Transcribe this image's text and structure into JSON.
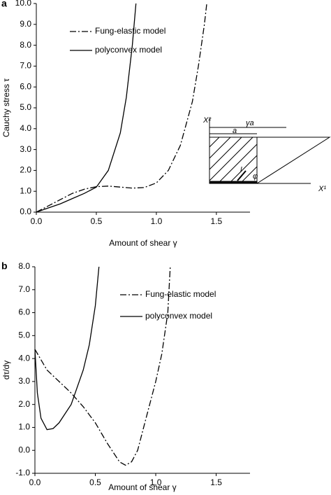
{
  "chart_data": [
    {
      "type": "line",
      "panel_label": "a",
      "xlabel": "Amount of shear γ",
      "ylabel": "Cauchy stress  τ",
      "xlim": [
        0,
        1.78
      ],
      "ylim": [
        0,
        10
      ],
      "xticks": [
        {
          "value": 0,
          "label": "0.0"
        },
        {
          "value": 0.5,
          "label": "0.5"
        },
        {
          "value": 1,
          "label": "1.0"
        },
        {
          "value": 1.5,
          "label": "1.5"
        }
      ],
      "yticks": [
        {
          "value": 0,
          "label": "0.0"
        },
        {
          "value": 1,
          "label": "1.0"
        },
        {
          "value": 2,
          "label": "2.0"
        },
        {
          "value": 3,
          "label": "3.0"
        },
        {
          "value": 4,
          "label": "4.0"
        },
        {
          "value": 5,
          "label": "5.0"
        },
        {
          "value": 6,
          "label": "6.0"
        },
        {
          "value": 7,
          "label": "7.0"
        },
        {
          "value": 8,
          "label": "8.0"
        },
        {
          "value": 9,
          "label": "9.0"
        },
        {
          "value": 10,
          "label": "10.0"
        }
      ],
      "series": [
        {
          "name": "Fung-elastic model",
          "color": "#000000",
          "style": "dashdot",
          "x": [
            0,
            0.1,
            0.2,
            0.3,
            0.4,
            0.5,
            0.6,
            0.7,
            0.8,
            0.9,
            1.0,
            1.1,
            1.2,
            1.3,
            1.35,
            1.4,
            1.42
          ],
          "values": [
            0,
            0.3,
            0.6,
            0.9,
            1.1,
            1.22,
            1.25,
            1.2,
            1.15,
            1.18,
            1.4,
            2.0,
            3.2,
            5.3,
            7.0,
            9.0,
            10
          ]
        },
        {
          "name": "polyconvex model",
          "color": "#000000",
          "style": "solid",
          "x": [
            0,
            0.1,
            0.2,
            0.3,
            0.4,
            0.5,
            0.6,
            0.7,
            0.75,
            0.8,
            0.83
          ],
          "values": [
            0,
            0.2,
            0.4,
            0.65,
            0.9,
            1.2,
            2.0,
            3.8,
            5.5,
            8.0,
            10
          ]
        }
      ],
      "annotations": [
        "X²",
        "γa",
        "a",
        "X¹",
        "l",
        "φ"
      ]
    },
    {
      "type": "line",
      "panel_label": "b",
      "xlabel": "Amount of shear γ",
      "ylabel": "dτ/dγ",
      "xlim": [
        0,
        1.78
      ],
      "ylim": [
        -1,
        8
      ],
      "xticks": [
        {
          "value": 0,
          "label": "0.0"
        },
        {
          "value": 0.5,
          "label": "0.5"
        },
        {
          "value": 1,
          "label": "1.0"
        },
        {
          "value": 1.5,
          "label": "1.5"
        }
      ],
      "yticks": [
        {
          "value": -1,
          "label": "-1.0"
        },
        {
          "value": 0,
          "label": "0.0"
        },
        {
          "value": 1,
          "label": "1.0"
        },
        {
          "value": 2,
          "label": "2.0"
        },
        {
          "value": 3,
          "label": "3.0"
        },
        {
          "value": 4,
          "label": "4.0"
        },
        {
          "value": 5,
          "label": "5.0"
        },
        {
          "value": 6,
          "label": "6.0"
        },
        {
          "value": 7,
          "label": "7.0"
        },
        {
          "value": 8,
          "label": "8.0"
        }
      ],
      "series": [
        {
          "name": "Fung-elastic model",
          "color": "#000000",
          "style": "dashdot",
          "x": [
            0,
            0.1,
            0.2,
            0.3,
            0.4,
            0.5,
            0.6,
            0.7,
            0.75,
            0.8,
            0.85,
            0.9,
            1.0,
            1.05,
            1.1,
            1.12
          ],
          "values": [
            4.4,
            3.5,
            3.0,
            2.5,
            1.9,
            1.2,
            0.3,
            -0.5,
            -0.65,
            -0.5,
            0,
            1.0,
            3.0,
            4.2,
            6.0,
            8.0
          ]
        },
        {
          "name": "polyconvex model",
          "color": "#000000",
          "style": "solid",
          "x": [
            0,
            0.02,
            0.05,
            0.1,
            0.15,
            0.2,
            0.3,
            0.4,
            0.45,
            0.5,
            0.53
          ],
          "values": [
            4.4,
            2.5,
            1.4,
            0.9,
            0.95,
            1.2,
            2.0,
            3.5,
            4.6,
            6.3,
            8.0
          ]
        }
      ]
    }
  ]
}
